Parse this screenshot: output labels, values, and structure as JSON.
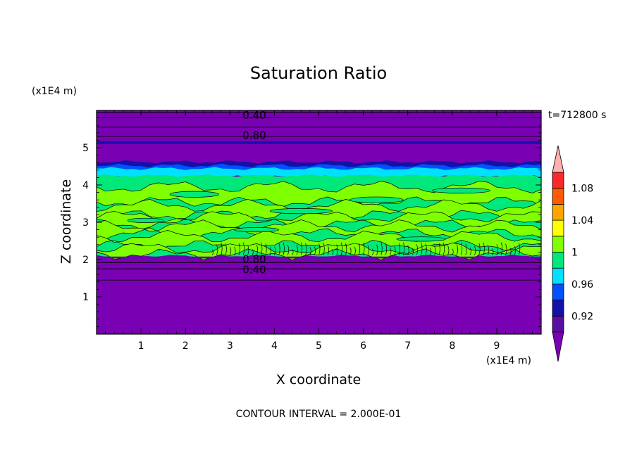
{
  "chart_data": {
    "type": "heatmap",
    "title": "Saturation Ratio",
    "xlabel": "X coordinate",
    "ylabel": "Z coordinate",
    "x_unit": "(x1E4 m)",
    "y_unit": "(x1E4 m)",
    "time_label": "t=712800 s",
    "footer": "CONTOUR INTERVAL = 2.000E-01",
    "xlim": [
      0,
      10
    ],
    "ylim": [
      0,
      6
    ],
    "x_ticks": [
      "1",
      "2",
      "3",
      "4",
      "5",
      "6",
      "7",
      "8",
      "9"
    ],
    "y_ticks": [
      "1",
      "2",
      "3",
      "4",
      "5"
    ],
    "contour_labels": [
      "0.40",
      "0.80",
      "0.80",
      "0.40"
    ],
    "colorbar": {
      "levels": [
        0.9,
        0.92,
        0.94,
        0.96,
        0.98,
        1.0,
        1.02,
        1.04,
        1.06,
        1.08,
        1.1
      ],
      "tick_labels": [
        "0.92",
        "0.96",
        "1",
        "1.04",
        "1.08"
      ],
      "colors": [
        "#5a0fa0",
        "#1212a8",
        "#0050ff",
        "#00e0ff",
        "#00e87a",
        "#80ff00",
        "#ffff00",
        "#ffa500",
        "#ff5a00",
        "#ff2828"
      ],
      "under_color": "#7a00b4",
      "over_color": "#ffb0b0"
    },
    "layers": [
      {
        "z_from": 0.0,
        "z_to": 2.1,
        "value": "<0.90"
      },
      {
        "z_from": 2.1,
        "z_to": 4.2,
        "value": "0.98–1.02 (mostly 1.00–1.02)"
      },
      {
        "z_from": 4.2,
        "z_to": 4.5,
        "value": "0.92–0.98 transition"
      },
      {
        "z_from": 4.5,
        "z_to": 6.0,
        "value": "<0.90"
      }
    ]
  }
}
